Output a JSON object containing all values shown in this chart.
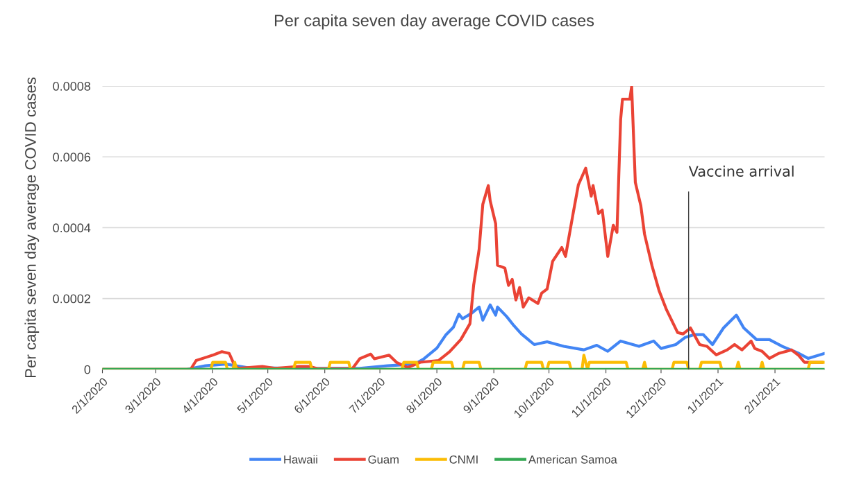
{
  "chart_data": {
    "type": "line",
    "title": "Per capita seven day average COVID cases",
    "ylabel": "Per capita seven day average COVID cases",
    "xlim": [
      "2020-02-01",
      "2021-02-28"
    ],
    "xticks": [
      {
        "value": "2020-02-01",
        "label": "2/1/2020"
      },
      {
        "value": "2020-03-01",
        "label": "3/1/2020"
      },
      {
        "value": "2020-04-01",
        "label": "4/1/2020"
      },
      {
        "value": "2020-05-01",
        "label": "5/1/2020"
      },
      {
        "value": "2020-06-01",
        "label": "6/1/2020"
      },
      {
        "value": "2020-07-01",
        "label": "7/1/2020"
      },
      {
        "value": "2020-08-01",
        "label": "8/1/2020"
      },
      {
        "value": "2020-09-01",
        "label": "9/1/2020"
      },
      {
        "value": "2020-10-01",
        "label": "10/1/2020"
      },
      {
        "value": "2020-11-01",
        "label": "11/1/2020"
      },
      {
        "value": "2020-12-01",
        "label": "12/1/2020"
      },
      {
        "value": "2021-01-01",
        "label": "1/1/2021"
      },
      {
        "value": "2021-02-01",
        "label": "2/1/2021"
      }
    ],
    "ylim": [
      0,
      0.0008
    ],
    "yticks": [
      0,
      0.0002,
      0.0004,
      0.0006,
      0.0008
    ],
    "grid": "y",
    "legend": "bottom",
    "marker": "none",
    "line_style": "solid",
    "ref_lines": [
      {
        "axis": "x",
        "value": "2020-12-16",
        "label": "Vaccine arrival",
        "color": "#444444"
      }
    ],
    "series": [
      {
        "name": "Hawaii",
        "color": "#4285f4",
        "x": [
          "2020-02-01",
          "2020-03-18",
          "2020-03-28",
          "2020-04-08",
          "2020-04-20",
          "2020-05-15",
          "2020-06-20",
          "2020-07-05",
          "2020-07-20",
          "2020-07-25",
          "2020-08-01",
          "2020-08-06",
          "2020-08-10",
          "2020-08-13",
          "2020-08-15",
          "2020-08-20",
          "2020-08-24",
          "2020-08-26",
          "2020-08-30",
          "2020-09-02",
          "2020-09-03",
          "2020-09-08",
          "2020-09-12",
          "2020-09-16",
          "2020-09-23",
          "2020-09-30",
          "2020-10-09",
          "2020-10-20",
          "2020-10-27",
          "2020-11-02",
          "2020-11-09",
          "2020-11-19",
          "2020-11-27",
          "2020-12-01",
          "2020-12-09",
          "2020-12-14",
          "2020-12-19",
          "2020-12-24",
          "2020-12-29",
          "2021-01-04",
          "2021-01-11",
          "2021-01-15",
          "2021-01-22",
          "2021-01-29",
          "2021-02-05",
          "2021-02-14",
          "2021-02-19",
          "2021-02-28"
        ],
        "values": [
          0,
          0,
          1e-05,
          1.5e-05,
          5e-06,
          3e-06,
          3e-06,
          1e-05,
          1.5e-05,
          3e-05,
          6e-05,
          9.8e-05,
          0.000119,
          0.000156,
          0.000143,
          0.000159,
          0.000176,
          0.000139,
          0.000182,
          0.000153,
          0.000176,
          0.000149,
          0.000123,
          0.0001,
          7e-05,
          7.8e-05,
          6.5e-05,
          5.5e-05,
          6.8e-05,
          5.1e-05,
          8e-05,
          6.5e-05,
          8e-05,
          5.9e-05,
          7e-05,
          9e-05,
          9.8e-05,
          9.8e-05,
          7e-05,
          0.000117,
          0.000153,
          0.000117,
          8.4e-05,
          8.4e-05,
          6.5e-05,
          4.5e-05,
          3.1e-05,
          4.5e-05
        ]
      },
      {
        "name": "Guam",
        "color": "#ea4335",
        "x": [
          "2020-02-01",
          "2020-03-20",
          "2020-03-23",
          "2020-03-29",
          "2020-04-01",
          "2020-04-06",
          "2020-04-10",
          "2020-04-13",
          "2020-04-15",
          "2020-04-28",
          "2020-05-05",
          "2020-05-18",
          "2020-05-24",
          "2020-05-28",
          "2020-06-16",
          "2020-06-20",
          "2020-06-26",
          "2020-06-28",
          "2020-07-06",
          "2020-07-10",
          "2020-07-16",
          "2020-07-23",
          "2020-08-02",
          "2020-08-08",
          "2020-08-14",
          "2020-08-19",
          "2020-08-21",
          "2020-08-24",
          "2020-08-26",
          "2020-08-29",
          "2020-08-30",
          "2020-09-02",
          "2020-09-03",
          "2020-09-07",
          "2020-09-09",
          "2020-09-11",
          "2020-09-13",
          "2020-09-15",
          "2020-09-17",
          "2020-09-20",
          "2020-09-25",
          "2020-09-27",
          "2020-09-30",
          "2020-10-03",
          "2020-10-08",
          "2020-10-10",
          "2020-10-14",
          "2020-10-17",
          "2020-10-21",
          "2020-10-24",
          "2020-10-25",
          "2020-10-28",
          "2020-10-30",
          "2020-11-02",
          "2020-11-05",
          "2020-11-07",
          "2020-11-09",
          "2020-11-10",
          "2020-11-14",
          "2020-11-15",
          "2020-11-17",
          "2020-11-20",
          "2020-11-22",
          "2020-11-26",
          "2020-11-30",
          "2020-12-04",
          "2020-12-10",
          "2020-12-13",
          "2020-12-17",
          "2020-12-22",
          "2020-12-26",
          "2020-12-31",
          "2021-01-06",
          "2021-01-10",
          "2021-01-14",
          "2021-01-19",
          "2021-01-21",
          "2021-01-25",
          "2021-01-29",
          "2021-02-03",
          "2021-02-10",
          "2021-02-14",
          "2021-02-17",
          "2021-02-27"
        ],
        "values": [
          0,
          0,
          2.5e-05,
          3.5e-05,
          4e-05,
          5e-05,
          4.5e-05,
          1e-05,
          3e-06,
          8e-06,
          3e-06,
          8e-06,
          8e-06,
          2e-06,
          2e-06,
          3e-05,
          4.3e-05,
          3e-05,
          4e-05,
          2e-05,
          5e-06,
          2e-05,
          2.5e-05,
          5e-05,
          8.4e-05,
          0.000129,
          0.000237,
          0.000339,
          0.000466,
          0.000519,
          0.000476,
          0.000411,
          0.000294,
          0.000286,
          0.000237,
          0.000254,
          0.000196,
          0.000231,
          0.000176,
          0.000202,
          0.000186,
          0.000215,
          0.000227,
          0.000305,
          0.000344,
          0.000319,
          0.000436,
          0.000521,
          0.000568,
          0.000489,
          0.000519,
          0.00044,
          0.00045,
          0.000319,
          0.000407,
          0.000387,
          0.000705,
          0.000763,
          0.000763,
          0.000798,
          0.000528,
          0.000462,
          0.000382,
          0.000294,
          0.000221,
          0.000168,
          0.000104,
          0.0001,
          0.000117,
          7e-05,
          6.5e-05,
          4.1e-05,
          5.5e-05,
          7e-05,
          5.5e-05,
          8e-05,
          5.9e-05,
          5.1e-05,
          3.1e-05,
          4.5e-05,
          5.5e-05,
          3.9e-05,
          2e-05,
          2e-05
        ]
      },
      {
        "name": "CNMI",
        "color": "#fbbc04",
        "x": [
          "2020-02-01",
          "2020-03-31",
          "2020-04-01",
          "2020-04-08",
          "2020-04-09",
          "2020-04-12",
          "2020-04-13",
          "2020-04-14",
          "2020-05-15",
          "2020-05-16",
          "2020-05-24",
          "2020-05-25",
          "2020-06-03",
          "2020-06-04",
          "2020-06-14",
          "2020-06-15",
          "2020-07-13",
          "2020-07-14",
          "2020-07-21",
          "2020-07-22",
          "2020-07-29",
          "2020-07-30",
          "2020-08-09",
          "2020-08-10",
          "2020-08-15",
          "2020-08-16",
          "2020-08-24",
          "2020-08-25",
          "2020-09-18",
          "2020-09-19",
          "2020-09-27",
          "2020-09-28",
          "2020-09-30",
          "2020-10-01",
          "2020-10-12",
          "2020-10-13",
          "2020-10-19",
          "2020-10-20",
          "2020-10-21",
          "2020-10-22",
          "2020-10-23",
          "2020-11-12",
          "2020-11-13",
          "2020-11-21",
          "2020-11-22",
          "2020-11-23",
          "2020-12-07",
          "2020-12-08",
          "2020-12-15",
          "2020-12-16",
          "2020-12-22",
          "2020-12-23",
          "2021-01-02",
          "2021-01-03",
          "2021-01-11",
          "2021-01-12",
          "2021-01-13",
          "2021-01-24",
          "2021-01-25",
          "2021-01-26",
          "2021-02-19",
          "2021-02-20",
          "2021-02-28"
        ],
        "values": [
          0,
          0,
          2e-05,
          2e-05,
          0,
          0,
          2e-05,
          0,
          0,
          2e-05,
          2e-05,
          0,
          0,
          2e-05,
          2e-05,
          0,
          0,
          2e-05,
          2e-05,
          0,
          0,
          2e-05,
          2e-05,
          0,
          0,
          2e-05,
          2e-05,
          0,
          0,
          2e-05,
          2e-05,
          0,
          0,
          2e-05,
          2e-05,
          0,
          0,
          4e-05,
          2e-05,
          0,
          2e-05,
          2e-05,
          0,
          0,
          2e-05,
          0,
          0,
          2e-05,
          2e-05,
          0,
          0,
          2e-05,
          2e-05,
          0,
          0,
          2e-05,
          0,
          0,
          2e-05,
          0,
          0,
          2e-05,
          2e-05
        ]
      },
      {
        "name": "American Samoa",
        "color": "#34a853",
        "x": [
          "2020-02-01",
          "2020-08-01",
          "2021-02-28"
        ],
        "values": [
          0,
          0,
          0
        ]
      }
    ]
  }
}
